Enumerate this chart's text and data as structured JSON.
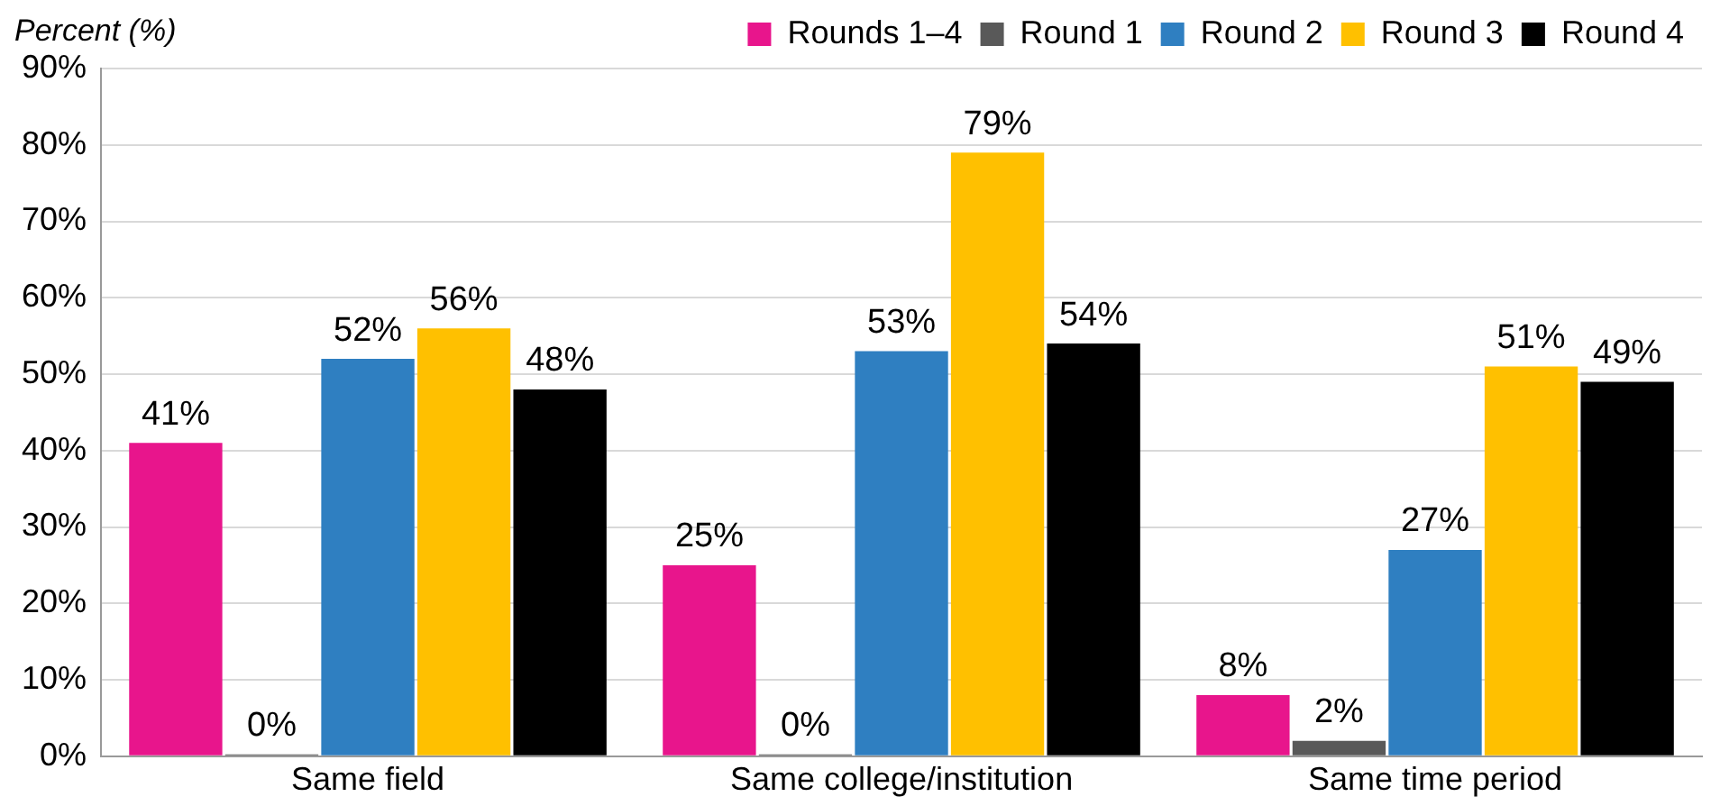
{
  "chart_data": {
    "type": "bar",
    "ylabel": "Percent (%)",
    "categories": [
      "Same field",
      "Same college/institution",
      "Same time period"
    ],
    "series": [
      {
        "name": "Rounds 1–4",
        "color": "#e8158c",
        "values": [
          41,
          25,
          8
        ],
        "value_labels": [
          "41%",
          "25%",
          "8%"
        ]
      },
      {
        "name": "Round 1",
        "color": "#595959",
        "values": [
          0,
          0,
          2
        ],
        "value_labels": [
          "0%",
          "0%",
          "2%"
        ]
      },
      {
        "name": "Round 2",
        "color": "#2f7fc1",
        "values": [
          52,
          53,
          27
        ],
        "value_labels": [
          "52%",
          "53%",
          "27%"
        ]
      },
      {
        "name": "Round 3",
        "color": "#ffc000",
        "values": [
          56,
          79,
          51
        ],
        "value_labels": [
          "56%",
          "79%",
          "51%"
        ]
      },
      {
        "name": "Round 4",
        "color": "#000000",
        "values": [
          48,
          54,
          49
        ],
        "value_labels": [
          "48%",
          "54%",
          "49%"
        ]
      }
    ],
    "ylim": [
      0,
      90
    ],
    "yticks": [
      {
        "value": 0,
        "label": "0%"
      },
      {
        "value": 10,
        "label": "10%"
      },
      {
        "value": 20,
        "label": "20%"
      },
      {
        "value": 30,
        "label": "30%"
      },
      {
        "value": 40,
        "label": "40%"
      },
      {
        "value": 50,
        "label": "50%"
      },
      {
        "value": 60,
        "label": "60%"
      },
      {
        "value": 70,
        "label": "70%"
      },
      {
        "value": 80,
        "label": "80%"
      },
      {
        "value": 90,
        "label": "90%"
      }
    ],
    "grid": "y",
    "legend": "top right"
  }
}
